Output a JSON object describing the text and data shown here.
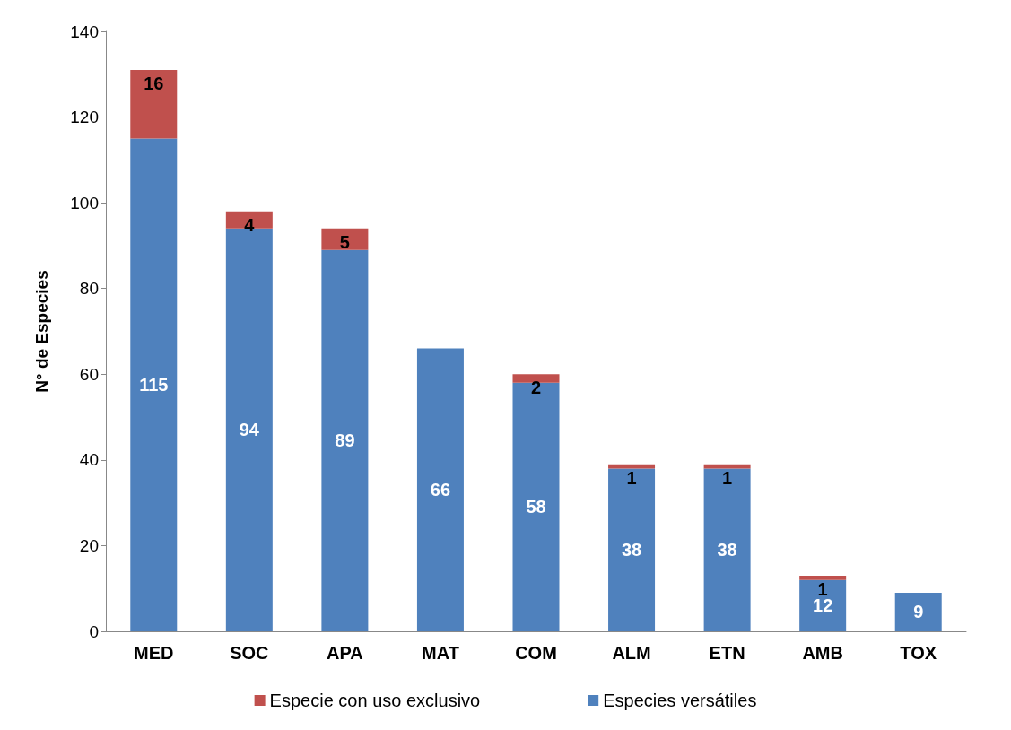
{
  "chart_data": {
    "type": "bar",
    "stacked": true,
    "ylabel": "N° de Especies",
    "categories": [
      "MED",
      "SOC",
      "APA",
      "MAT",
      "COM",
      "ALM",
      "ETN",
      "AMB",
      "TOX"
    ],
    "series": [
      {
        "name": "Especies versátiles",
        "color": "#4f81bd",
        "values": [
          115,
          94,
          89,
          66,
          58,
          38,
          38,
          12,
          9
        ]
      },
      {
        "name": "Especie con uso exclusivo",
        "color": "#c0504d",
        "values": [
          16,
          4,
          5,
          null,
          2,
          1,
          1,
          1,
          null
        ]
      }
    ],
    "ylim": [
      0,
      140
    ],
    "yticks": [
      0,
      20,
      40,
      60,
      80,
      100,
      120,
      140
    ],
    "grid": false,
    "legend": "bottom",
    "data_labels": true
  }
}
